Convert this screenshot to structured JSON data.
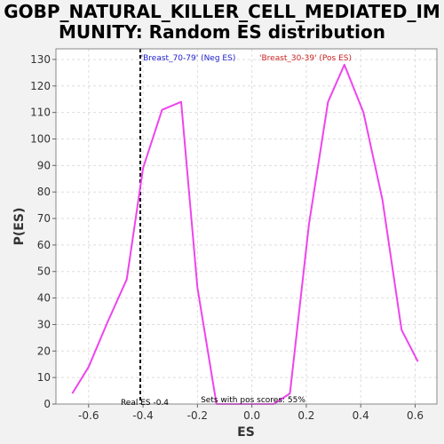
{
  "chart_data": {
    "type": "line",
    "title_line1": "GOBP_NATURAL_KILLER_CELL_MEDIATED_IM",
    "title_line2": "MUNITY: Random ES distribution",
    "xlabel": "ES",
    "ylabel": "P(ES)",
    "xlim": [
      -0.72,
      0.68
    ],
    "ylim": [
      0,
      134
    ],
    "x_ticks": [
      -0.6,
      -0.4,
      -0.2,
      0.0,
      0.2,
      0.4,
      0.6
    ],
    "x_tick_labels": [
      "-0.6",
      "-0.4",
      "-0.2",
      "0.0",
      "0.2",
      "0.4",
      "0.6"
    ],
    "y_ticks": [
      0,
      10,
      20,
      30,
      40,
      50,
      60,
      70,
      80,
      90,
      100,
      110,
      120,
      130
    ],
    "y_tick_labels": [
      "0",
      "10",
      "20",
      "30",
      "40",
      "50",
      "60",
      "70",
      "80",
      "90",
      "100",
      "110",
      "120",
      "130"
    ],
    "grid": true,
    "series": [
      {
        "color": "#ee44ee",
        "x": [
          -0.66,
          -0.6,
          -0.53,
          -0.46,
          -0.4,
          -0.33,
          -0.26,
          -0.2,
          -0.13,
          -0.06,
          0.01,
          0.08,
          0.14,
          0.21,
          0.28,
          0.34,
          0.41,
          0.48,
          0.55,
          0.61
        ],
        "y": [
          4,
          14,
          31,
          47,
          89,
          111,
          114,
          44,
          0,
          0,
          0,
          0,
          4,
          68,
          114,
          128,
          110,
          77,
          28,
          16
        ]
      }
    ],
    "real_es": -0.41,
    "annotations": {
      "real_es": "Real ES -0.4",
      "pos_scores": "Sets with pos scores: 55%",
      "legend_neg": "'Breast_70-79' (Neg ES)",
      "legend_pos": "'Breast_30-39' (Pos ES)"
    },
    "colors": {
      "line": "#ee44ee",
      "grid": "#dddddd",
      "plot_bg": "#ffffff",
      "page_bg": "#f2f2f2"
    }
  }
}
